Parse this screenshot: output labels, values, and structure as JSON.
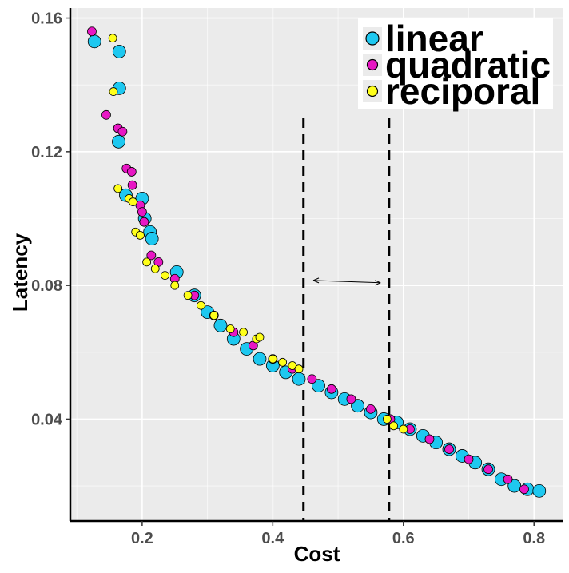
{
  "chart_data": {
    "type": "scatter",
    "title": "",
    "xlabel": "Cost",
    "ylabel": "Latency",
    "xlim": [
      0.09,
      0.845
    ],
    "ylim": [
      0.0095,
      0.163
    ],
    "x_ticks": [
      0.2,
      0.4,
      0.6,
      0.8
    ],
    "x_tick_labels": [
      "0.2",
      "0.4",
      "0.6",
      "0.8"
    ],
    "y_ticks": [
      0.04,
      0.08,
      0.12,
      0.16
    ],
    "y_tick_labels": [
      "0.04",
      "0.08",
      "0.12",
      "0.16"
    ],
    "grid": true,
    "legend_position": "top-right",
    "vlines": [
      0.447,
      0.578
    ],
    "arrow": {
      "from": [
        0.462,
        0.0815
      ],
      "to": [
        0.565,
        0.0808
      ]
    },
    "series": [
      {
        "name": "linear",
        "color": "#1ec8f0",
        "point_size": "large",
        "points": [
          [
            0.127,
            0.153
          ],
          [
            0.165,
            0.15
          ],
          [
            0.165,
            0.139
          ],
          [
            0.164,
            0.123
          ],
          [
            0.175,
            0.107
          ],
          [
            0.2,
            0.106
          ],
          [
            0.204,
            0.1
          ],
          [
            0.212,
            0.096
          ],
          [
            0.215,
            0.094
          ],
          [
            0.253,
            0.084
          ],
          [
            0.28,
            0.077
          ],
          [
            0.3,
            0.072
          ],
          [
            0.32,
            0.068
          ],
          [
            0.34,
            0.064
          ],
          [
            0.36,
            0.061
          ],
          [
            0.38,
            0.058
          ],
          [
            0.4,
            0.056
          ],
          [
            0.42,
            0.054
          ],
          [
            0.44,
            0.052
          ],
          [
            0.47,
            0.05
          ],
          [
            0.49,
            0.048
          ],
          [
            0.51,
            0.046
          ],
          [
            0.53,
            0.044
          ],
          [
            0.55,
            0.042
          ],
          [
            0.57,
            0.04
          ],
          [
            0.59,
            0.039
          ],
          [
            0.61,
            0.037
          ],
          [
            0.63,
            0.035
          ],
          [
            0.65,
            0.033
          ],
          [
            0.67,
            0.031
          ],
          [
            0.69,
            0.029
          ],
          [
            0.71,
            0.027
          ],
          [
            0.73,
            0.025
          ],
          [
            0.75,
            0.022
          ],
          [
            0.77,
            0.02
          ],
          [
            0.79,
            0.019
          ],
          [
            0.808,
            0.0185
          ]
        ]
      },
      {
        "name": "quadratic",
        "color": "#e817c4",
        "point_size": "medium",
        "points": [
          [
            0.123,
            0.156
          ],
          [
            0.145,
            0.131
          ],
          [
            0.163,
            0.127
          ],
          [
            0.17,
            0.126
          ],
          [
            0.176,
            0.115
          ],
          [
            0.184,
            0.114
          ],
          [
            0.185,
            0.11
          ],
          [
            0.197,
            0.104
          ],
          [
            0.2,
            0.102
          ],
          [
            0.203,
            0.099
          ],
          [
            0.214,
            0.089
          ],
          [
            0.225,
            0.087
          ],
          [
            0.25,
            0.082
          ],
          [
            0.28,
            0.077
          ],
          [
            0.31,
            0.071
          ],
          [
            0.34,
            0.066
          ],
          [
            0.37,
            0.062
          ],
          [
            0.4,
            0.058
          ],
          [
            0.43,
            0.055
          ],
          [
            0.46,
            0.052
          ],
          [
            0.49,
            0.049
          ],
          [
            0.52,
            0.046
          ],
          [
            0.55,
            0.043
          ],
          [
            0.58,
            0.04
          ],
          [
            0.61,
            0.037
          ],
          [
            0.64,
            0.034
          ],
          [
            0.67,
            0.031
          ],
          [
            0.7,
            0.028
          ],
          [
            0.73,
            0.025
          ],
          [
            0.76,
            0.022
          ],
          [
            0.785,
            0.019
          ]
        ]
      },
      {
        "name": "reciporal",
        "color": "#ffff1a",
        "point_size": "small",
        "points": [
          [
            0.155,
            0.154
          ],
          [
            0.156,
            0.138
          ],
          [
            0.163,
            0.109
          ],
          [
            0.18,
            0.106
          ],
          [
            0.186,
            0.105
          ],
          [
            0.19,
            0.096
          ],
          [
            0.197,
            0.095
          ],
          [
            0.207,
            0.087
          ],
          [
            0.22,
            0.085
          ],
          [
            0.235,
            0.083
          ],
          [
            0.25,
            0.08
          ],
          [
            0.27,
            0.077
          ],
          [
            0.29,
            0.074
          ],
          [
            0.31,
            0.071
          ],
          [
            0.335,
            0.067
          ],
          [
            0.355,
            0.066
          ],
          [
            0.375,
            0.064
          ],
          [
            0.38,
            0.0645
          ],
          [
            0.4,
            0.058
          ],
          [
            0.415,
            0.057
          ],
          [
            0.43,
            0.056
          ],
          [
            0.44,
            0.055
          ],
          [
            0.575,
            0.04
          ],
          [
            0.585,
            0.038
          ],
          [
            0.6,
            0.037
          ]
        ]
      }
    ]
  },
  "colors": {
    "panel_bg": "#ebebeb",
    "grid_major": "#ffffff",
    "point_outline": "#000000"
  }
}
